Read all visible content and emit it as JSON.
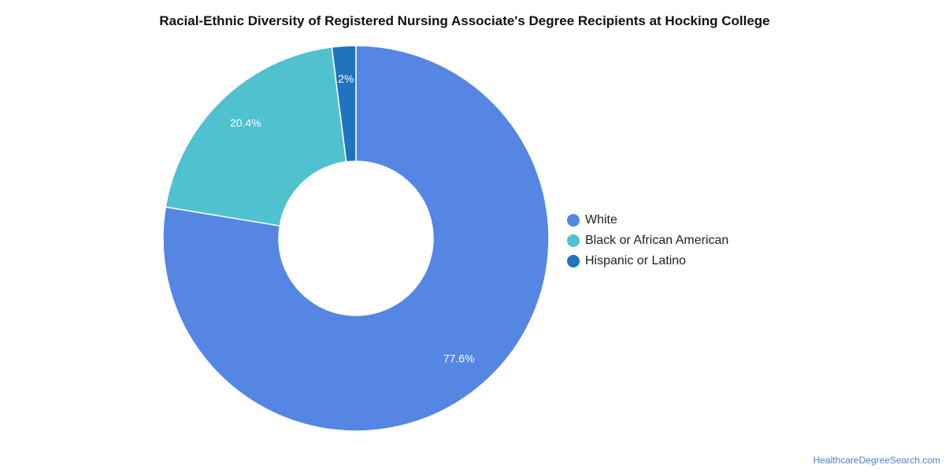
{
  "chart_data": {
    "type": "pie",
    "title": "Racial-Ethnic Diversity of Registered Nursing Associate's Degree Recipients at Hocking College",
    "donut": true,
    "legend_position": "right",
    "categories": [
      "White",
      "Black or African American",
      "Hispanic or Latino"
    ],
    "values": [
      77.6,
      20.4,
      2
    ],
    "labels": [
      "77.6%",
      "20.4%",
      "2%"
    ],
    "colors": [
      "#5586e3",
      "#4fc1cf",
      "#1f74bd"
    ]
  },
  "footer": {
    "source": "HealthcareDegreeSearch.com"
  }
}
